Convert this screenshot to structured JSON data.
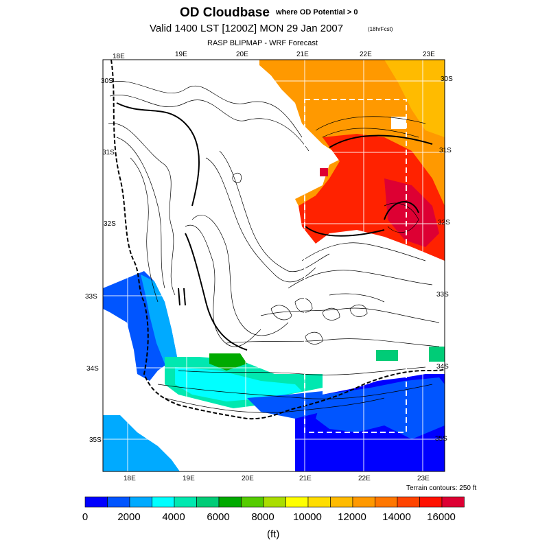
{
  "header": {
    "title": "OD Cloudbase",
    "subtitle": "where OD Potential > 0",
    "valid_line": "Valid 1400 LST [1200Z] MON 29 Jan 2007",
    "forecast_note": "(18hrFcst)",
    "product_line": "RASP BLIPMAP - WRF Forecast"
  },
  "map": {
    "lon_labels_top": [
      "18E",
      "19E",
      "20E",
      "21E",
      "22E",
      "23E"
    ],
    "lon_labels_bottom": [
      "18E",
      "19E",
      "20E",
      "21E",
      "22E",
      "23E"
    ],
    "lat_labels": [
      "30S",
      "31S",
      "32S",
      "33S",
      "34S",
      "35S"
    ],
    "terrain_note": "Terrain contours: 250 ft"
  },
  "colorbar": {
    "colors": [
      "#0000ff",
      "#0055ff",
      "#00aaff",
      "#00ffff",
      "#00e8b0",
      "#00cc77",
      "#00aa00",
      "#55cc00",
      "#aadd00",
      "#ffff00",
      "#ffdd00",
      "#ffbb00",
      "#ff9900",
      "#ff7700",
      "#ff4400",
      "#ff1100",
      "#dd0033"
    ],
    "tick_labels": [
      "0",
      "2000",
      "4000",
      "6000",
      "8000",
      "10000",
      "12000",
      "14000",
      "16000"
    ],
    "unit": "(ft)"
  }
}
